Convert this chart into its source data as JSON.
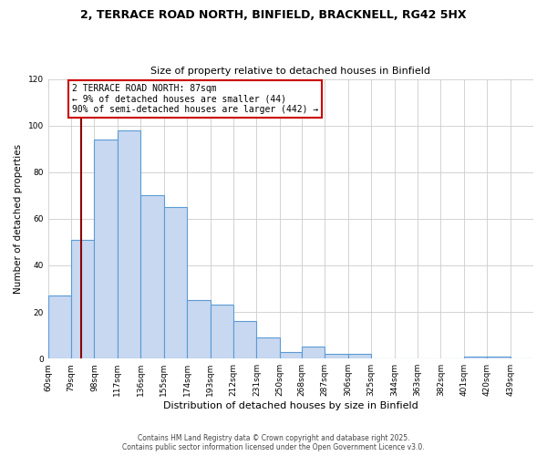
{
  "title_line1": "2, TERRACE ROAD NORTH, BINFIELD, BRACKNELL, RG42 5HX",
  "title_line2": "Size of property relative to detached houses in Binfield",
  "xlabel": "Distribution of detached houses by size in Binfield",
  "ylabel": "Number of detached properties",
  "bin_labels": [
    "60sqm",
    "79sqm",
    "98sqm",
    "117sqm",
    "136sqm",
    "155sqm",
    "174sqm",
    "193sqm",
    "212sqm",
    "231sqm",
    "250sqm",
    "268sqm",
    "287sqm",
    "306sqm",
    "325sqm",
    "344sqm",
    "363sqm",
    "382sqm",
    "401sqm",
    "420sqm",
    "439sqm"
  ],
  "bar_heights": [
    27,
    51,
    94,
    98,
    70,
    65,
    25,
    23,
    16,
    9,
    3,
    5,
    2,
    2,
    0,
    0,
    0,
    0,
    1,
    1,
    0
  ],
  "bin_edges": [
    60,
    79,
    98,
    117,
    136,
    155,
    174,
    193,
    212,
    231,
    250,
    268,
    287,
    306,
    325,
    344,
    363,
    382,
    401,
    420,
    439,
    458
  ],
  "bar_color": "#c8d8f0",
  "bar_edge_color": "#5b9bd5",
  "vline_x": 87,
  "vline_color": "#8b0000",
  "annotation_line1": "2 TERRACE ROAD NORTH: 87sqm",
  "annotation_line2": "← 9% of detached houses are smaller (44)",
  "annotation_line3": "90% of semi-detached houses are larger (442) →",
  "annotation_box_edge": "#cc0000",
  "ylim": [
    0,
    120
  ],
  "yticks": [
    0,
    20,
    40,
    60,
    80,
    100,
    120
  ],
  "background_color": "#ffffff",
  "grid_color": "#cccccc",
  "footer_line1": "Contains HM Land Registry data © Crown copyright and database right 2025.",
  "footer_line2": "Contains public sector information licensed under the Open Government Licence v3.0."
}
